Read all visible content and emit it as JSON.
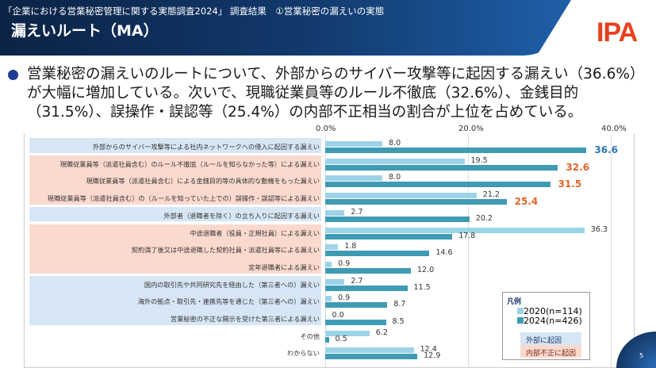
{
  "header": {
    "subtitle": "「企業における営業秘密管理に関する実態調査2024」 調査結果　①営業秘密の漏えいの実態",
    "title": "漏えいルート（MA）",
    "logo": "IPA"
  },
  "bullet": "営業秘密の漏えいのルートについて、外部からのサイバー攻撃等に起因する漏えい（36.6%）が大幅に増加している。次いで、現職従業員等のルール不徹底（32.6%）、金銭目的（31.5%）、誤操作・誤認等（25.4%）の内部不正相当の割合が上位を占めている。",
  "page_number": "5",
  "colors": {
    "s2020": "#9dd3e8",
    "s2024": "#3e9bb3",
    "external_bg": "#d6e6f4",
    "internal_bg": "#fbd9cf",
    "hl_external": "#2e75b6",
    "hl_internal": "#e0652a"
  },
  "chart_data": {
    "type": "bar",
    "orientation": "horizontal",
    "xlim": [
      0,
      40
    ],
    "ticks": [
      "0.0%",
      "20.0%",
      "40.0%"
    ],
    "grid": true,
    "legend_placement": "bottom-right",
    "legend_title": "凡例",
    "categories": [
      "外部からのサイバー攻撃等による社内ネットワークへの侵入に起因する漏えい",
      "現職従業員等（派遣社員含む）のルール不徹底（ルールを知らなかった等）による漏えい",
      "現職従業員等（派遣社員含む）による金銭目的等の具体的な動機をもった漏えい",
      "現職従業員等（派遣社員含む）の（ルールを知っていた上での）誤操作・誤認等による漏えい",
      "外部者（退職者を除く）の立ち入りに起因する漏えい",
      "中途退職者（役員・正規社員）による漏えい",
      "契約満了後又は中途退職した契約社員・派遣社員等による漏えい",
      "定年退職者による漏えい",
      "国内の取引先や共同研究先を経由した（第三者への）漏えい",
      "海外の拠点・取引先・連携先等を通じた（第三者への）漏えい",
      "営業秘密の不正な開示を受けた第三者による漏えい",
      "その他",
      "わからない"
    ],
    "groups": [
      "external",
      "internal",
      "internal",
      "internal",
      "external",
      "internal",
      "internal",
      "internal",
      "external",
      "external",
      "external",
      "none",
      "none"
    ],
    "highlight": [
      0,
      1,
      2,
      3
    ],
    "series": [
      {
        "name": "2020(n=114)",
        "values": [
          8.0,
          19.5,
          8.0,
          21.2,
          2.7,
          36.3,
          1.8,
          0.9,
          2.7,
          0.9,
          0.0,
          6.2,
          12.4
        ]
      },
      {
        "name": "2024(n=426)",
        "values": [
          36.6,
          32.6,
          31.5,
          25.4,
          20.2,
          17.8,
          14.6,
          12.0,
          11.5,
          8.7,
          8.5,
          0.5,
          12.9
        ]
      }
    ],
    "group_legend": {
      "external": "外部に起因",
      "internal": "内部不正に起因"
    }
  }
}
